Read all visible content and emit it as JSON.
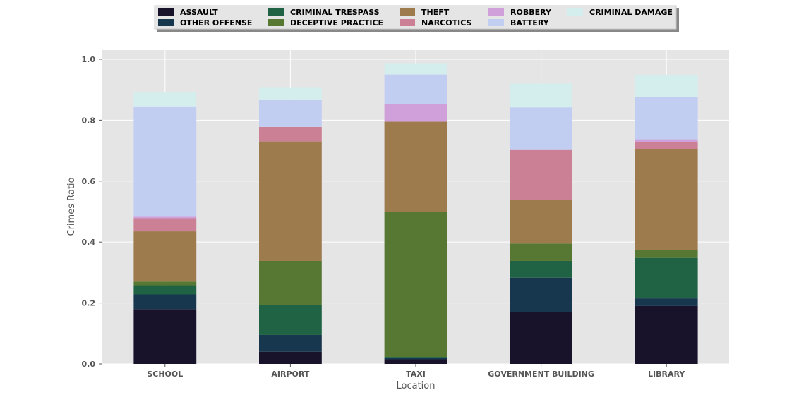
{
  "chart_data": {
    "type": "bar",
    "stacked": true,
    "xlabel": "Location",
    "ylabel": "Crimes Ratio",
    "ylim": [
      0,
      1.03
    ],
    "yticks": [
      "0.0",
      "0.2",
      "0.4",
      "0.6",
      "0.8",
      "1.0"
    ],
    "grid": true,
    "legend_position": "top-center",
    "categories": [
      "SCHOOL",
      "AIRPORT",
      "TAXI",
      "GOVERNMENT BUILDING",
      "LIBRARY"
    ],
    "series": [
      {
        "name": "ASSAULT",
        "color": "#18132b",
        "values": [
          0.18,
          0.04,
          0.015,
          0.17,
          0.19
        ]
      },
      {
        "name": "OTHER OFFENSE",
        "color": "#17374f",
        "values": [
          0.048,
          0.055,
          0.005,
          0.113,
          0.025
        ]
      },
      {
        "name": "CRIMINAL TRESPASS",
        "color": "#1f6244",
        "values": [
          0.03,
          0.098,
          0.003,
          0.055,
          0.133
        ]
      },
      {
        "name": "DECEPTIVE PRACTICE",
        "color": "#567832",
        "values": [
          0.012,
          0.145,
          0.475,
          0.057,
          0.027
        ]
      },
      {
        "name": "THEFT",
        "color": "#9e7b4d",
        "values": [
          0.165,
          0.392,
          0.297,
          0.142,
          0.33
        ]
      },
      {
        "name": "NARCOTICS",
        "color": "#cc8095",
        "values": [
          0.043,
          0.048,
          0.0,
          0.165,
          0.022
        ]
      },
      {
        "name": "ROBBERY",
        "color": "#cfa0d9",
        "values": [
          0.005,
          0.0,
          0.058,
          0.0,
          0.01
        ]
      },
      {
        "name": "BATTERY",
        "color": "#c2cdf2",
        "values": [
          0.36,
          0.088,
          0.097,
          0.14,
          0.14
        ]
      },
      {
        "name": "CRIMINAL DAMAGE",
        "color": "#d4eeee",
        "values": [
          0.05,
          0.04,
          0.035,
          0.078,
          0.07
        ]
      }
    ]
  }
}
